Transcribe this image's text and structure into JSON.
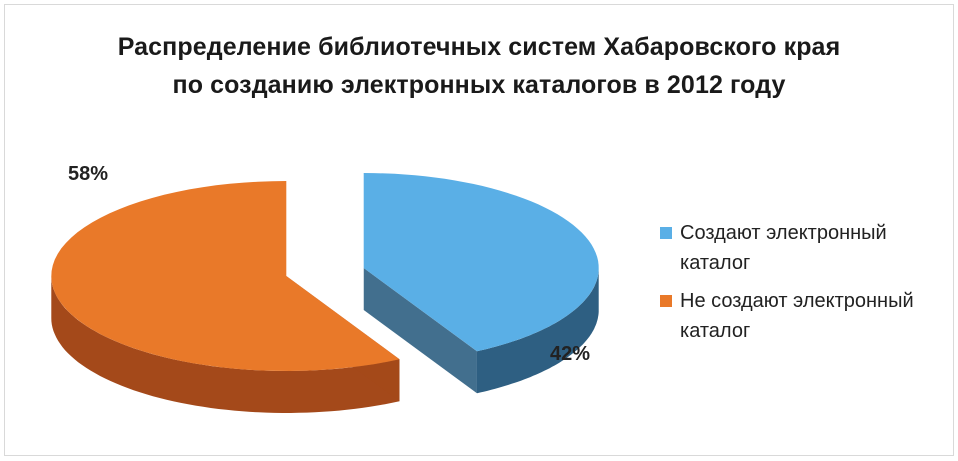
{
  "chart_data": {
    "type": "pie",
    "title_lines": [
      "Распределение библиотечных систем Хабаровского края",
      "по созданию электронных каталогов в 2012 году"
    ],
    "slices": [
      {
        "name": "Создают электронный каталог",
        "value": 42,
        "label": "42%",
        "color": "#5aafe6",
        "side_color": "#2e5f82"
      },
      {
        "name": "Не создают электронный каталог",
        "value": 58,
        "label": "58%",
        "color": "#e97929",
        "side_color": "#a4491a"
      }
    ],
    "legend_position": "right",
    "exploded": true,
    "style": "3d"
  }
}
